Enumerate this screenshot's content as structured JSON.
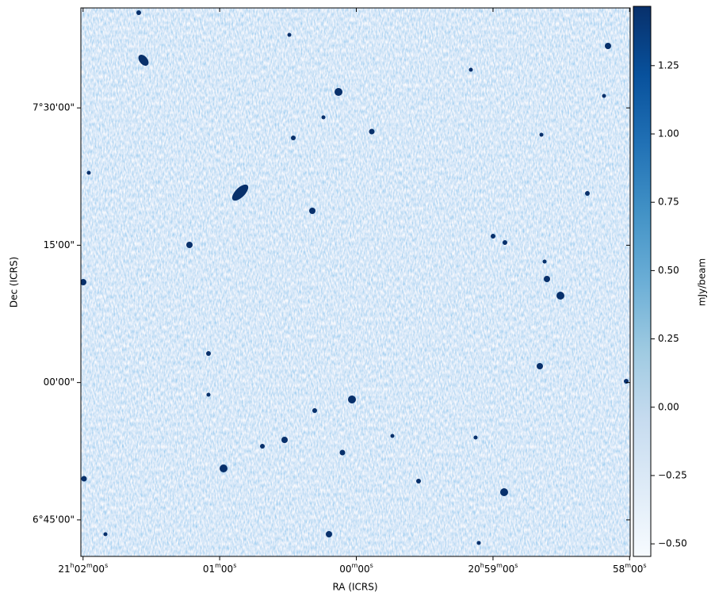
{
  "chart_data": {
    "type": "image",
    "xlabel": "RA (ICRS)",
    "ylabel": "Dec (ICRS)",
    "colorbar_label": "mJy/beam",
    "xlim": [
      21.0336,
      20.9666
    ],
    "xticks": [
      {
        "value": 21.03333,
        "label": "21h02m00s"
      },
      {
        "value": 21.01667,
        "label": "01m00s"
      },
      {
        "value": 21.0,
        "label": "00m00s"
      },
      {
        "value": 20.98333,
        "label": "20h59m00s"
      },
      {
        "value": 20.96667,
        "label": "58m00s"
      }
    ],
    "ylim": [
      6.6835,
      7.682
    ],
    "yticks": [
      {
        "value": 6.75,
        "label": "6°45'00\""
      },
      {
        "value": 7.0,
        "label": "00'00\""
      },
      {
        "value": 7.25,
        "label": "15'00\""
      },
      {
        "value": 7.5,
        "label": "7°30'00\""
      }
    ],
    "clim": [
      -0.546,
      1.467
    ],
    "cticks": [
      {
        "value": -0.5,
        "label": "−0.50"
      },
      {
        "value": -0.25,
        "label": "−0.25"
      },
      {
        "value": 0,
        "label": "0.00"
      },
      {
        "value": 0.25,
        "label": "0.25"
      },
      {
        "value": 0.5,
        "label": "0.50"
      },
      {
        "value": 0.75,
        "label": "0.75"
      },
      {
        "value": 1.0,
        "label": "1.00"
      },
      {
        "value": 1.25,
        "label": "1.25"
      }
    ],
    "colormap": [
      "#f7fbff",
      "#deebf7",
      "#c6dbef",
      "#9ecae1",
      "#6baed6",
      "#4292c6",
      "#2171b5",
      "#08519c",
      "#08306b"
    ]
  }
}
